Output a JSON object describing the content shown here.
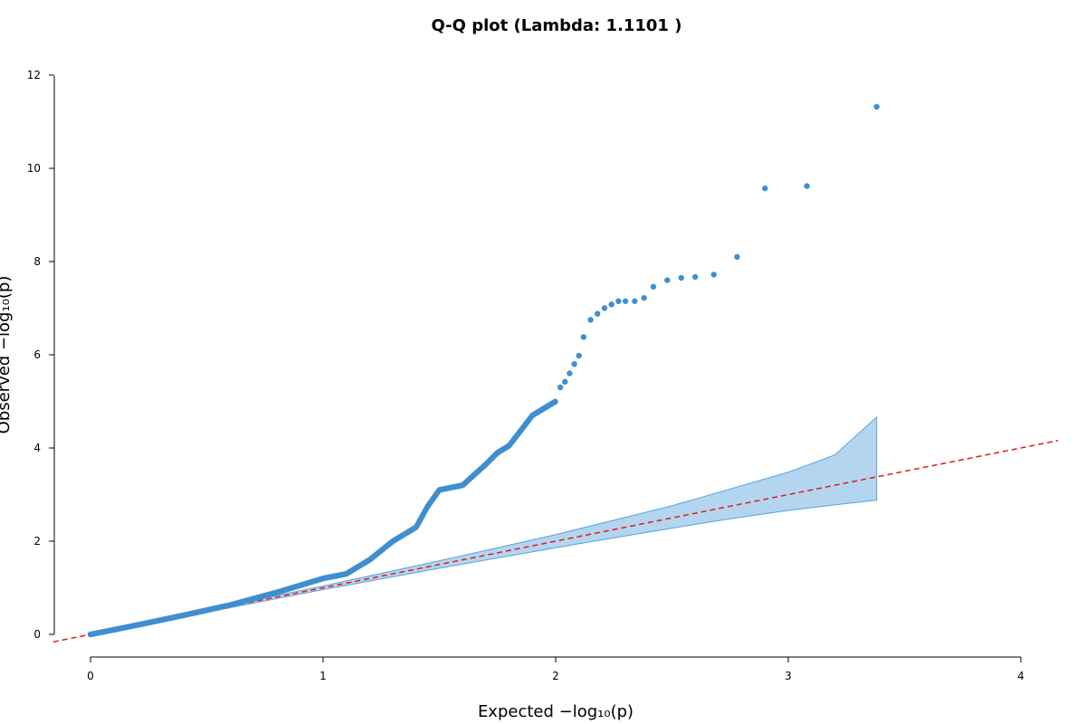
{
  "chart_data": {
    "type": "scatter",
    "title": "Q-Q plot (Lambda: 1.1101 )",
    "xlabel": "Expected  −log₁₀(p)",
    "ylabel": "Observed  −log₁₀(p)",
    "xlim": [
      -0.16,
      4.16
    ],
    "ylim": [
      -0.48,
      12.0
    ],
    "x_ticks": [
      "0",
      "1",
      "2",
      "3",
      "4"
    ],
    "y_ticks": [
      "0",
      "2",
      "4",
      "6",
      "8",
      "10",
      "12"
    ],
    "grid": false,
    "point_color": "#3f8fd0",
    "reference_line_color": "#e41a1c",
    "ci_fill_color": "#b3d5f0",
    "ci_edge_color": "#5aa2d8",
    "reference_line": {
      "slope": 1,
      "intercept": 0
    },
    "confidence_band": {
      "x": [
        0.0,
        0.3,
        0.65,
        1.0,
        1.5,
        2.0,
        2.5,
        2.75,
        3.0,
        3.2,
        3.38
      ],
      "upper": [
        0.0,
        0.31,
        0.68,
        1.04,
        1.58,
        2.14,
        2.76,
        3.12,
        3.48,
        3.85,
        4.66
      ],
      "lower": [
        0.0,
        0.29,
        0.62,
        0.96,
        1.42,
        1.86,
        2.28,
        2.48,
        2.66,
        2.78,
        2.88
      ]
    },
    "curve": {
      "x": [
        0.0,
        0.2,
        0.4,
        0.6,
        0.8,
        1.0,
        1.1,
        1.2,
        1.3,
        1.4,
        1.45,
        1.5,
        1.6,
        1.7,
        1.75,
        1.8,
        1.9,
        2.0
      ],
      "y": [
        0.0,
        0.2,
        0.41,
        0.63,
        0.9,
        1.2,
        1.3,
        1.6,
        2.0,
        2.3,
        2.75,
        3.1,
        3.2,
        3.65,
        3.9,
        4.05,
        4.7,
        5.0
      ]
    },
    "points": [
      {
        "x": 2.02,
        "y": 5.3
      },
      {
        "x": 2.04,
        "y": 5.42
      },
      {
        "x": 2.06,
        "y": 5.6
      },
      {
        "x": 2.08,
        "y": 5.8
      },
      {
        "x": 2.1,
        "y": 5.98
      },
      {
        "x": 2.12,
        "y": 6.38
      },
      {
        "x": 2.15,
        "y": 6.75
      },
      {
        "x": 2.18,
        "y": 6.88
      },
      {
        "x": 2.21,
        "y": 7.0
      },
      {
        "x": 2.24,
        "y": 7.08
      },
      {
        "x": 2.27,
        "y": 7.15
      },
      {
        "x": 2.3,
        "y": 7.15
      },
      {
        "x": 2.34,
        "y": 7.15
      },
      {
        "x": 2.38,
        "y": 7.22
      },
      {
        "x": 2.42,
        "y": 7.46
      },
      {
        "x": 2.48,
        "y": 7.6
      },
      {
        "x": 2.54,
        "y": 7.65
      },
      {
        "x": 2.6,
        "y": 7.67
      },
      {
        "x": 2.68,
        "y": 7.72
      },
      {
        "x": 2.78,
        "y": 8.1
      },
      {
        "x": 2.9,
        "y": 9.57
      },
      {
        "x": 3.08,
        "y": 9.62
      },
      {
        "x": 3.38,
        "y": 11.32
      }
    ]
  }
}
